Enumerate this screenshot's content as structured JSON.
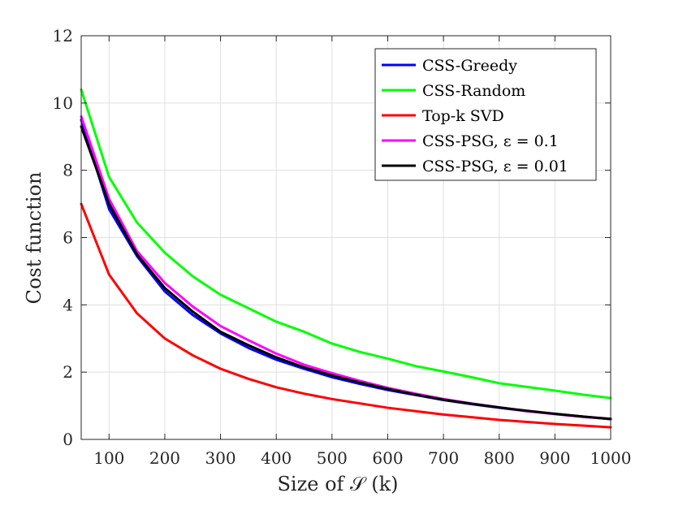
{
  "chart_data": {
    "type": "line",
    "title": "",
    "xlabel": "Size of 𝒮 (k)",
    "ylabel": "Cost function",
    "xlim": [
      50,
      1000
    ],
    "ylim": [
      0,
      12
    ],
    "xticks": [
      100,
      200,
      300,
      400,
      500,
      600,
      700,
      800,
      900,
      1000
    ],
    "yticks": [
      0,
      2,
      4,
      6,
      8,
      10,
      12
    ],
    "grid": true,
    "legend_position": "top-right",
    "x": [
      50,
      100,
      150,
      200,
      250,
      300,
      350,
      400,
      450,
      500,
      550,
      600,
      650,
      700,
      750,
      800,
      850,
      900,
      950,
      1000
    ],
    "series": [
      {
        "name": "CSS-Greedy",
        "color": "#0000ff",
        "values": [
          9.5,
          6.85,
          5.45,
          4.4,
          3.7,
          3.15,
          2.72,
          2.37,
          2.1,
          1.85,
          1.65,
          1.47,
          1.32,
          1.17,
          1.05,
          0.94,
          0.84,
          0.76,
          0.68,
          0.6
        ]
      },
      {
        "name": "CSS-Random",
        "color": "#00ff00",
        "values": [
          10.4,
          7.8,
          6.45,
          5.55,
          4.85,
          4.3,
          3.9,
          3.5,
          3.2,
          2.85,
          2.6,
          2.4,
          2.18,
          2.02,
          1.85,
          1.67,
          1.56,
          1.45,
          1.33,
          1.23
        ]
      },
      {
        "name": "Top-k SVD",
        "color": "#ff0000",
        "values": [
          7.0,
          4.9,
          3.75,
          3.0,
          2.5,
          2.1,
          1.8,
          1.55,
          1.36,
          1.2,
          1.07,
          0.94,
          0.84,
          0.74,
          0.66,
          0.58,
          0.52,
          0.46,
          0.41,
          0.36
        ]
      },
      {
        "name": "CSS-PSG, ε = 0.1",
        "color": "#ff00ff",
        "values": [
          9.6,
          7.15,
          5.6,
          4.65,
          3.95,
          3.37,
          2.95,
          2.55,
          2.22,
          1.97,
          1.74,
          1.53,
          1.36,
          1.2,
          1.07,
          0.95,
          0.84,
          0.75,
          0.67,
          0.61
        ]
      },
      {
        "name": "CSS-PSG, ε = 0.01",
        "color": "#000000",
        "values": [
          9.3,
          7.0,
          5.5,
          4.5,
          3.8,
          3.2,
          2.8,
          2.44,
          2.14,
          1.9,
          1.69,
          1.5,
          1.33,
          1.18,
          1.06,
          0.95,
          0.85,
          0.76,
          0.68,
          0.61
        ]
      }
    ]
  }
}
